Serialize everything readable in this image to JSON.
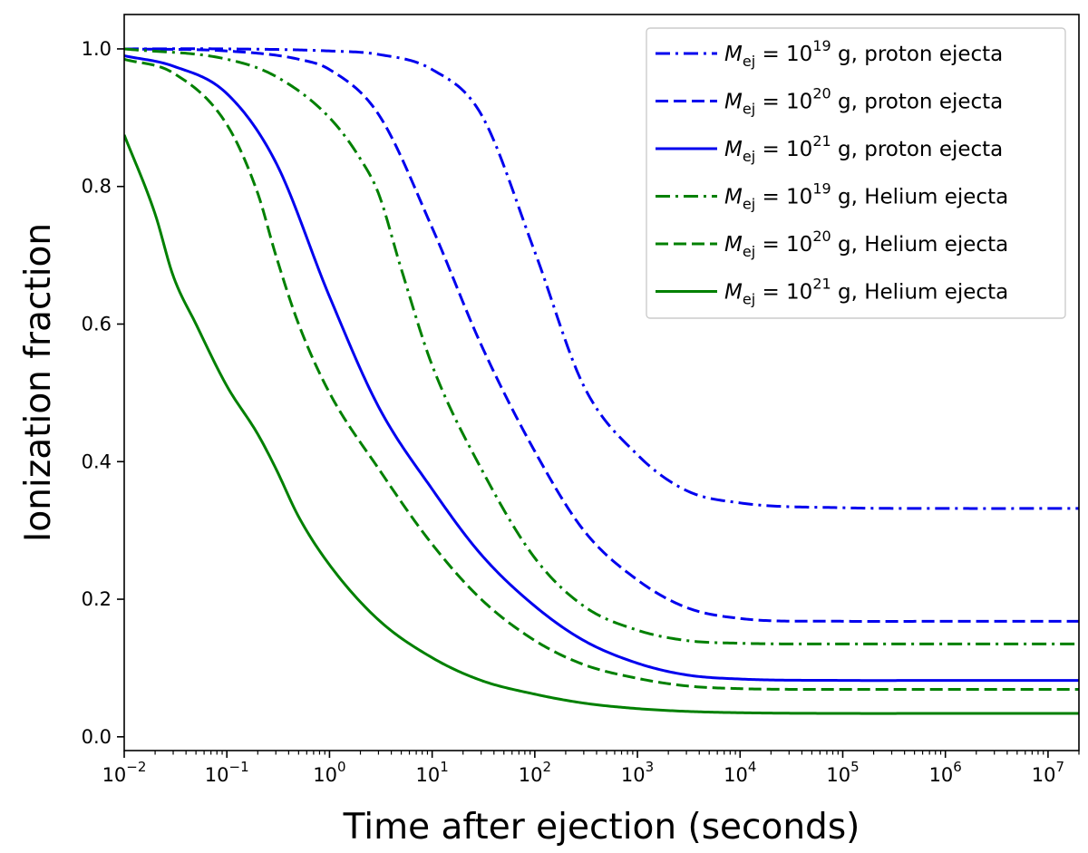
{
  "chart_data": {
    "type": "line",
    "xlabel": "Time after ejection (seconds)",
    "ylabel": "Ionization fraction",
    "xscale": "log",
    "xlim": [
      0.01,
      20000000
    ],
    "ylim": [
      -0.02,
      1.05
    ],
    "x_ticks": [
      {
        "value": 0.01,
        "base": "10",
        "exp": "−2"
      },
      {
        "value": 0.1,
        "base": "10",
        "exp": "−1"
      },
      {
        "value": 1,
        "base": "10",
        "exp": "0"
      },
      {
        "value": 10,
        "base": "10",
        "exp": "1"
      },
      {
        "value": 100,
        "base": "10",
        "exp": "2"
      },
      {
        "value": 1000,
        "base": "10",
        "exp": "3"
      },
      {
        "value": 10000,
        "base": "10",
        "exp": "4"
      },
      {
        "value": 100000,
        "base": "10",
        "exp": "5"
      },
      {
        "value": 1000000,
        "base": "10",
        "exp": "6"
      },
      {
        "value": 10000000,
        "base": "10",
        "exp": "7"
      }
    ],
    "y_ticks": [
      {
        "value": 0.0,
        "label": "0.0"
      },
      {
        "value": 0.2,
        "label": "0.2"
      },
      {
        "value": 0.4,
        "label": "0.4"
      },
      {
        "value": 0.6,
        "label": "0.6"
      },
      {
        "value": 0.8,
        "label": "0.8"
      },
      {
        "value": 1.0,
        "label": "1.0"
      }
    ],
    "grid": false,
    "legend_position": "top-right",
    "series": [
      {
        "legend": {
          "mass_symbol": "M",
          "mass_sub": "ej",
          "base": "10",
          "exp": "19",
          "unit": "g,",
          "desc": "proton ejecta"
        },
        "color": "#0000ee",
        "style": "dashdot",
        "x": [
          0.01,
          0.1,
          1,
          3,
          10,
          30,
          100,
          300,
          1000,
          3000,
          10000,
          100000,
          1000000,
          20000000
        ],
        "y": [
          1.0,
          1.0,
          0.997,
          0.992,
          0.97,
          0.905,
          0.705,
          0.51,
          0.41,
          0.358,
          0.34,
          0.333,
          0.332,
          0.332
        ]
      },
      {
        "legend": {
          "mass_symbol": "M",
          "mass_sub": "ej",
          "base": "10",
          "exp": "20",
          "unit": "g,",
          "desc": "proton ejecta"
        },
        "color": "#0000ee",
        "style": "dashed",
        "x": [
          0.01,
          0.1,
          0.5,
          1,
          3,
          10,
          30,
          100,
          300,
          1000,
          3000,
          10000,
          100000,
          1000000,
          20000000
        ],
        "y": [
          1.0,
          0.997,
          0.985,
          0.97,
          0.905,
          0.74,
          0.57,
          0.415,
          0.3,
          0.228,
          0.188,
          0.172,
          0.168,
          0.168,
          0.168
        ]
      },
      {
        "legend": {
          "mass_symbol": "M",
          "mass_sub": "ej",
          "base": "10",
          "exp": "21",
          "unit": "g,",
          "desc": "proton ejecta"
        },
        "color": "#0000ee",
        "style": "solid",
        "x": [
          0.01,
          0.03,
          0.1,
          0.3,
          1,
          3,
          10,
          30,
          100,
          300,
          1000,
          3000,
          10000,
          100000,
          1000000,
          20000000
        ],
        "y": [
          0.99,
          0.975,
          0.935,
          0.835,
          0.64,
          0.48,
          0.36,
          0.265,
          0.19,
          0.14,
          0.107,
          0.09,
          0.084,
          0.082,
          0.082,
          0.082
        ]
      },
      {
        "legend": {
          "mass_symbol": "M",
          "mass_sub": "ej",
          "base": "10",
          "exp": "19",
          "unit": "g,",
          "desc": "Helium ejecta"
        },
        "color": "#008000",
        "style": "dashdot",
        "x": [
          0.01,
          0.1,
          0.3,
          1,
          2,
          3,
          5,
          10,
          30,
          100,
          300,
          1000,
          3000,
          10000,
          100000,
          1000000,
          20000000
        ],
        "y": [
          1.0,
          0.985,
          0.96,
          0.9,
          0.84,
          0.79,
          0.68,
          0.54,
          0.39,
          0.26,
          0.19,
          0.155,
          0.14,
          0.136,
          0.135,
          0.135,
          0.135
        ]
      },
      {
        "legend": {
          "mass_symbol": "M",
          "mass_sub": "ej",
          "base": "10",
          "exp": "20",
          "unit": "g,",
          "desc": "Helium ejecta"
        },
        "color": "#008000",
        "style": "dashed",
        "x": [
          0.01,
          0.03,
          0.1,
          0.2,
          0.3,
          0.5,
          1,
          3,
          10,
          30,
          100,
          300,
          1000,
          3000,
          10000,
          100000,
          1000000,
          20000000
        ],
        "y": [
          0.985,
          0.965,
          0.89,
          0.79,
          0.7,
          0.6,
          0.5,
          0.39,
          0.28,
          0.2,
          0.14,
          0.105,
          0.085,
          0.074,
          0.07,
          0.069,
          0.069,
          0.069
        ]
      },
      {
        "legend": {
          "mass_symbol": "M",
          "mass_sub": "ej",
          "base": "10",
          "exp": "21",
          "unit": "g,",
          "desc": "Helium ejecta"
        },
        "color": "#008000",
        "style": "solid",
        "x": [
          0.01,
          0.02,
          0.03,
          0.05,
          0.1,
          0.2,
          0.3,
          0.5,
          1,
          3,
          10,
          30,
          100,
          300,
          1000,
          3000,
          10000,
          100000,
          1000000,
          20000000
        ],
        "y": [
          0.875,
          0.76,
          0.67,
          0.6,
          0.51,
          0.44,
          0.39,
          0.32,
          0.25,
          0.17,
          0.115,
          0.082,
          0.062,
          0.049,
          0.041,
          0.037,
          0.035,
          0.034,
          0.034,
          0.034
        ]
      }
    ]
  }
}
